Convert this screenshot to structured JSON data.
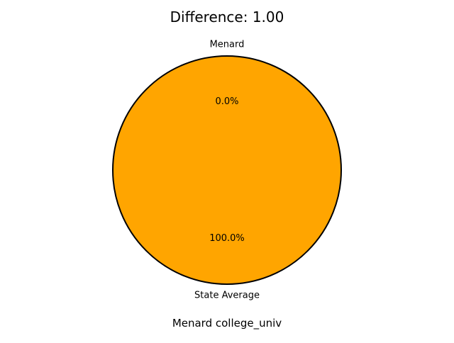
{
  "chart_data": {
    "type": "pie",
    "title": "Difference: 1.00",
    "xlabel": "Menard college_univ",
    "slices": [
      {
        "label": "Menard",
        "value": 0.0,
        "pct_label": "0.0%",
        "color": "#1f77b4"
      },
      {
        "label": "State Average",
        "value": 100.0,
        "pct_label": "100.0%",
        "color": "#ffa500"
      }
    ],
    "wedge_edge_color": "#000000"
  }
}
